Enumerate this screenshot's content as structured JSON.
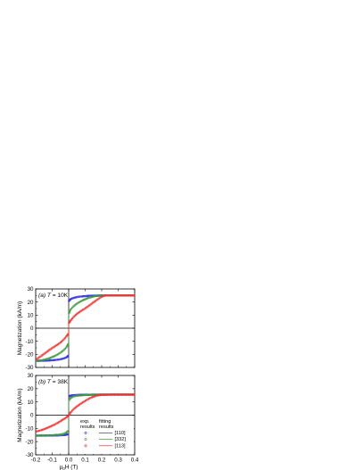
{
  "chart_data": [
    {
      "type": "scatter",
      "panel_label": "(a) T = 10K",
      "xlabel": "",
      "ylabel": "Magnetization (kA/m)",
      "xlim": [
        -0.2,
        0.4
      ],
      "ylim": [
        -30,
        30
      ],
      "x_ticks": [
        -0.2,
        -0.1,
        0.0,
        0.1,
        0.2,
        0.3,
        0.4
      ],
      "y_ticks": [
        -30,
        -20,
        -10,
        0,
        10,
        20,
        30
      ],
      "x_tick_labels": [
        "",
        "",
        "",
        "",
        "",
        "",
        ""
      ],
      "y_tick_labels": [
        "-30",
        "-20",
        "-10",
        "0",
        "10",
        "20",
        "30"
      ],
      "series": [
        {
          "color": "#2b2bff",
          "fit_color": "#444444",
          "x": [
            -0.2,
            -0.16,
            -0.12,
            -0.08,
            -0.05,
            -0.03,
            -0.015,
            -0.006,
            -0.002,
            0.002,
            0.006,
            0.015,
            0.03,
            0.05,
            0.08,
            0.12,
            0.16,
            0.2,
            0.25,
            0.3,
            0.35,
            0.4
          ],
          "y": [
            -25,
            -24.9,
            -24.7,
            -24.3,
            -23.8,
            -23.1,
            -22.4,
            -21.6,
            -20.8,
            20.8,
            21.6,
            22.4,
            23.1,
            23.8,
            24.3,
            24.7,
            24.9,
            25,
            25,
            25,
            25,
            25
          ]
        },
        {
          "color": "#3a9a3a",
          "fit_color": "#3a9a3a",
          "x": [
            -0.2,
            -0.16,
            -0.12,
            -0.08,
            -0.05,
            -0.03,
            -0.015,
            -0.006,
            -0.002,
            0.002,
            0.006,
            0.015,
            0.03,
            0.05,
            0.08,
            0.12,
            0.16,
            0.2,
            0.25,
            0.3,
            0.35,
            0.4
          ],
          "y": [
            -25,
            -24.5,
            -23.2,
            -21,
            -18.8,
            -16.8,
            -14.8,
            -13,
            -11.5,
            11.5,
            13,
            14.8,
            16.8,
            18.8,
            21,
            23.2,
            24.5,
            25,
            25,
            25,
            25,
            25
          ]
        },
        {
          "color": "#ff2a2a",
          "fit_color": "#ff2a2a",
          "x": [
            -0.2,
            -0.17,
            -0.14,
            -0.11,
            -0.08,
            -0.05,
            -0.03,
            -0.015,
            -0.006,
            -0.002,
            0.002,
            0.006,
            0.015,
            0.03,
            0.05,
            0.08,
            0.11,
            0.14,
            0.17,
            0.2,
            0.22,
            0.25,
            0.3,
            0.35,
            0.4
          ],
          "y": [
            -24,
            -21.6,
            -18.8,
            -16,
            -13.6,
            -11,
            -8.6,
            -6.4,
            -5,
            -4.2,
            4.2,
            5,
            6.4,
            8.6,
            11,
            13.6,
            16,
            18.8,
            21.6,
            24,
            25,
            25,
            25,
            25,
            25
          ]
        }
      ]
    },
    {
      "type": "scatter",
      "panel_label": "(b) T = 38K",
      "xlabel": "μ0H (T)",
      "ylabel": "Magnetization (kA/m)",
      "xlim": [
        -0.2,
        0.4
      ],
      "ylim": [
        -30,
        30
      ],
      "x_ticks": [
        -0.2,
        -0.1,
        0.0,
        0.1,
        0.2,
        0.3,
        0.4
      ],
      "y_ticks": [
        -30,
        -20,
        -10,
        0,
        10,
        20,
        30
      ],
      "x_tick_labels": [
        "-0.2",
        "-0.1",
        "0.0",
        "0.1",
        "0.2",
        "0.3",
        "0.4"
      ],
      "y_tick_labels": [
        "-30",
        "-20",
        "-10",
        "0",
        "10",
        "20",
        "30"
      ],
      "series": [
        {
          "color": "#2b2bff",
          "fit_color": "#444444",
          "x": [
            -0.2,
            -0.15,
            -0.1,
            -0.06,
            -0.03,
            -0.012,
            -0.004,
            0.004,
            0.012,
            0.03,
            0.06,
            0.1,
            0.15,
            0.2,
            0.25,
            0.3,
            0.35,
            0.4
          ],
          "y": [
            -15.5,
            -15.5,
            -15.4,
            -15.3,
            -15.1,
            -14.8,
            -14.2,
            14.2,
            14.8,
            15.1,
            15.3,
            15.4,
            15.5,
            15.5,
            15.5,
            15.5,
            15.5,
            15.5
          ]
        },
        {
          "color": "#3a9a3a",
          "fit_color": "#3a9a3a",
          "x": [
            -0.2,
            -0.15,
            -0.1,
            -0.06,
            -0.03,
            -0.012,
            -0.004,
            0.004,
            0.012,
            0.03,
            0.06,
            0.1,
            0.15,
            0.2,
            0.25,
            0.3,
            0.35,
            0.4
          ],
          "y": [
            -15.5,
            -15.4,
            -15.2,
            -14.8,
            -14.2,
            -13,
            -11.5,
            11.5,
            13,
            14.2,
            14.8,
            15.2,
            15.4,
            15.5,
            15.5,
            15.5,
            15.5,
            15.5
          ]
        },
        {
          "color": "#ff2a2a",
          "fit_color": "#ff2a2a",
          "x": [
            -0.2,
            -0.17,
            -0.14,
            -0.11,
            -0.08,
            -0.05,
            -0.03,
            -0.015,
            -0.005,
            0,
            0.005,
            0.015,
            0.03,
            0.05,
            0.08,
            0.11,
            0.14,
            0.17,
            0.2,
            0.25,
            0.3,
            0.35,
            0.4
          ],
          "y": [
            -12.5,
            -11.5,
            -10.2,
            -8.5,
            -6.8,
            -4.6,
            -3,
            -1.8,
            -0.8,
            0,
            1.2,
            2.5,
            4.6,
            6.6,
            9.2,
            11.6,
            13.5,
            14.8,
            15.3,
            15.5,
            15.5,
            15.5,
            15.5
          ]
        }
      ],
      "legend": {
        "placement": "bottom-right",
        "col1_title": "exp.\nresults",
        "col2_title": "fitting\nresults",
        "entries": [
          {
            "label": "[110]",
            "color": "#2b2bff",
            "fit_color": "#444444"
          },
          {
            "label": "[332]",
            "color": "#3a9a3a",
            "fit_color": "#3a9a3a"
          },
          {
            "label": "[113]",
            "color": "#ff2a2a",
            "fit_color": "#ff2a2a"
          }
        ]
      }
    }
  ]
}
